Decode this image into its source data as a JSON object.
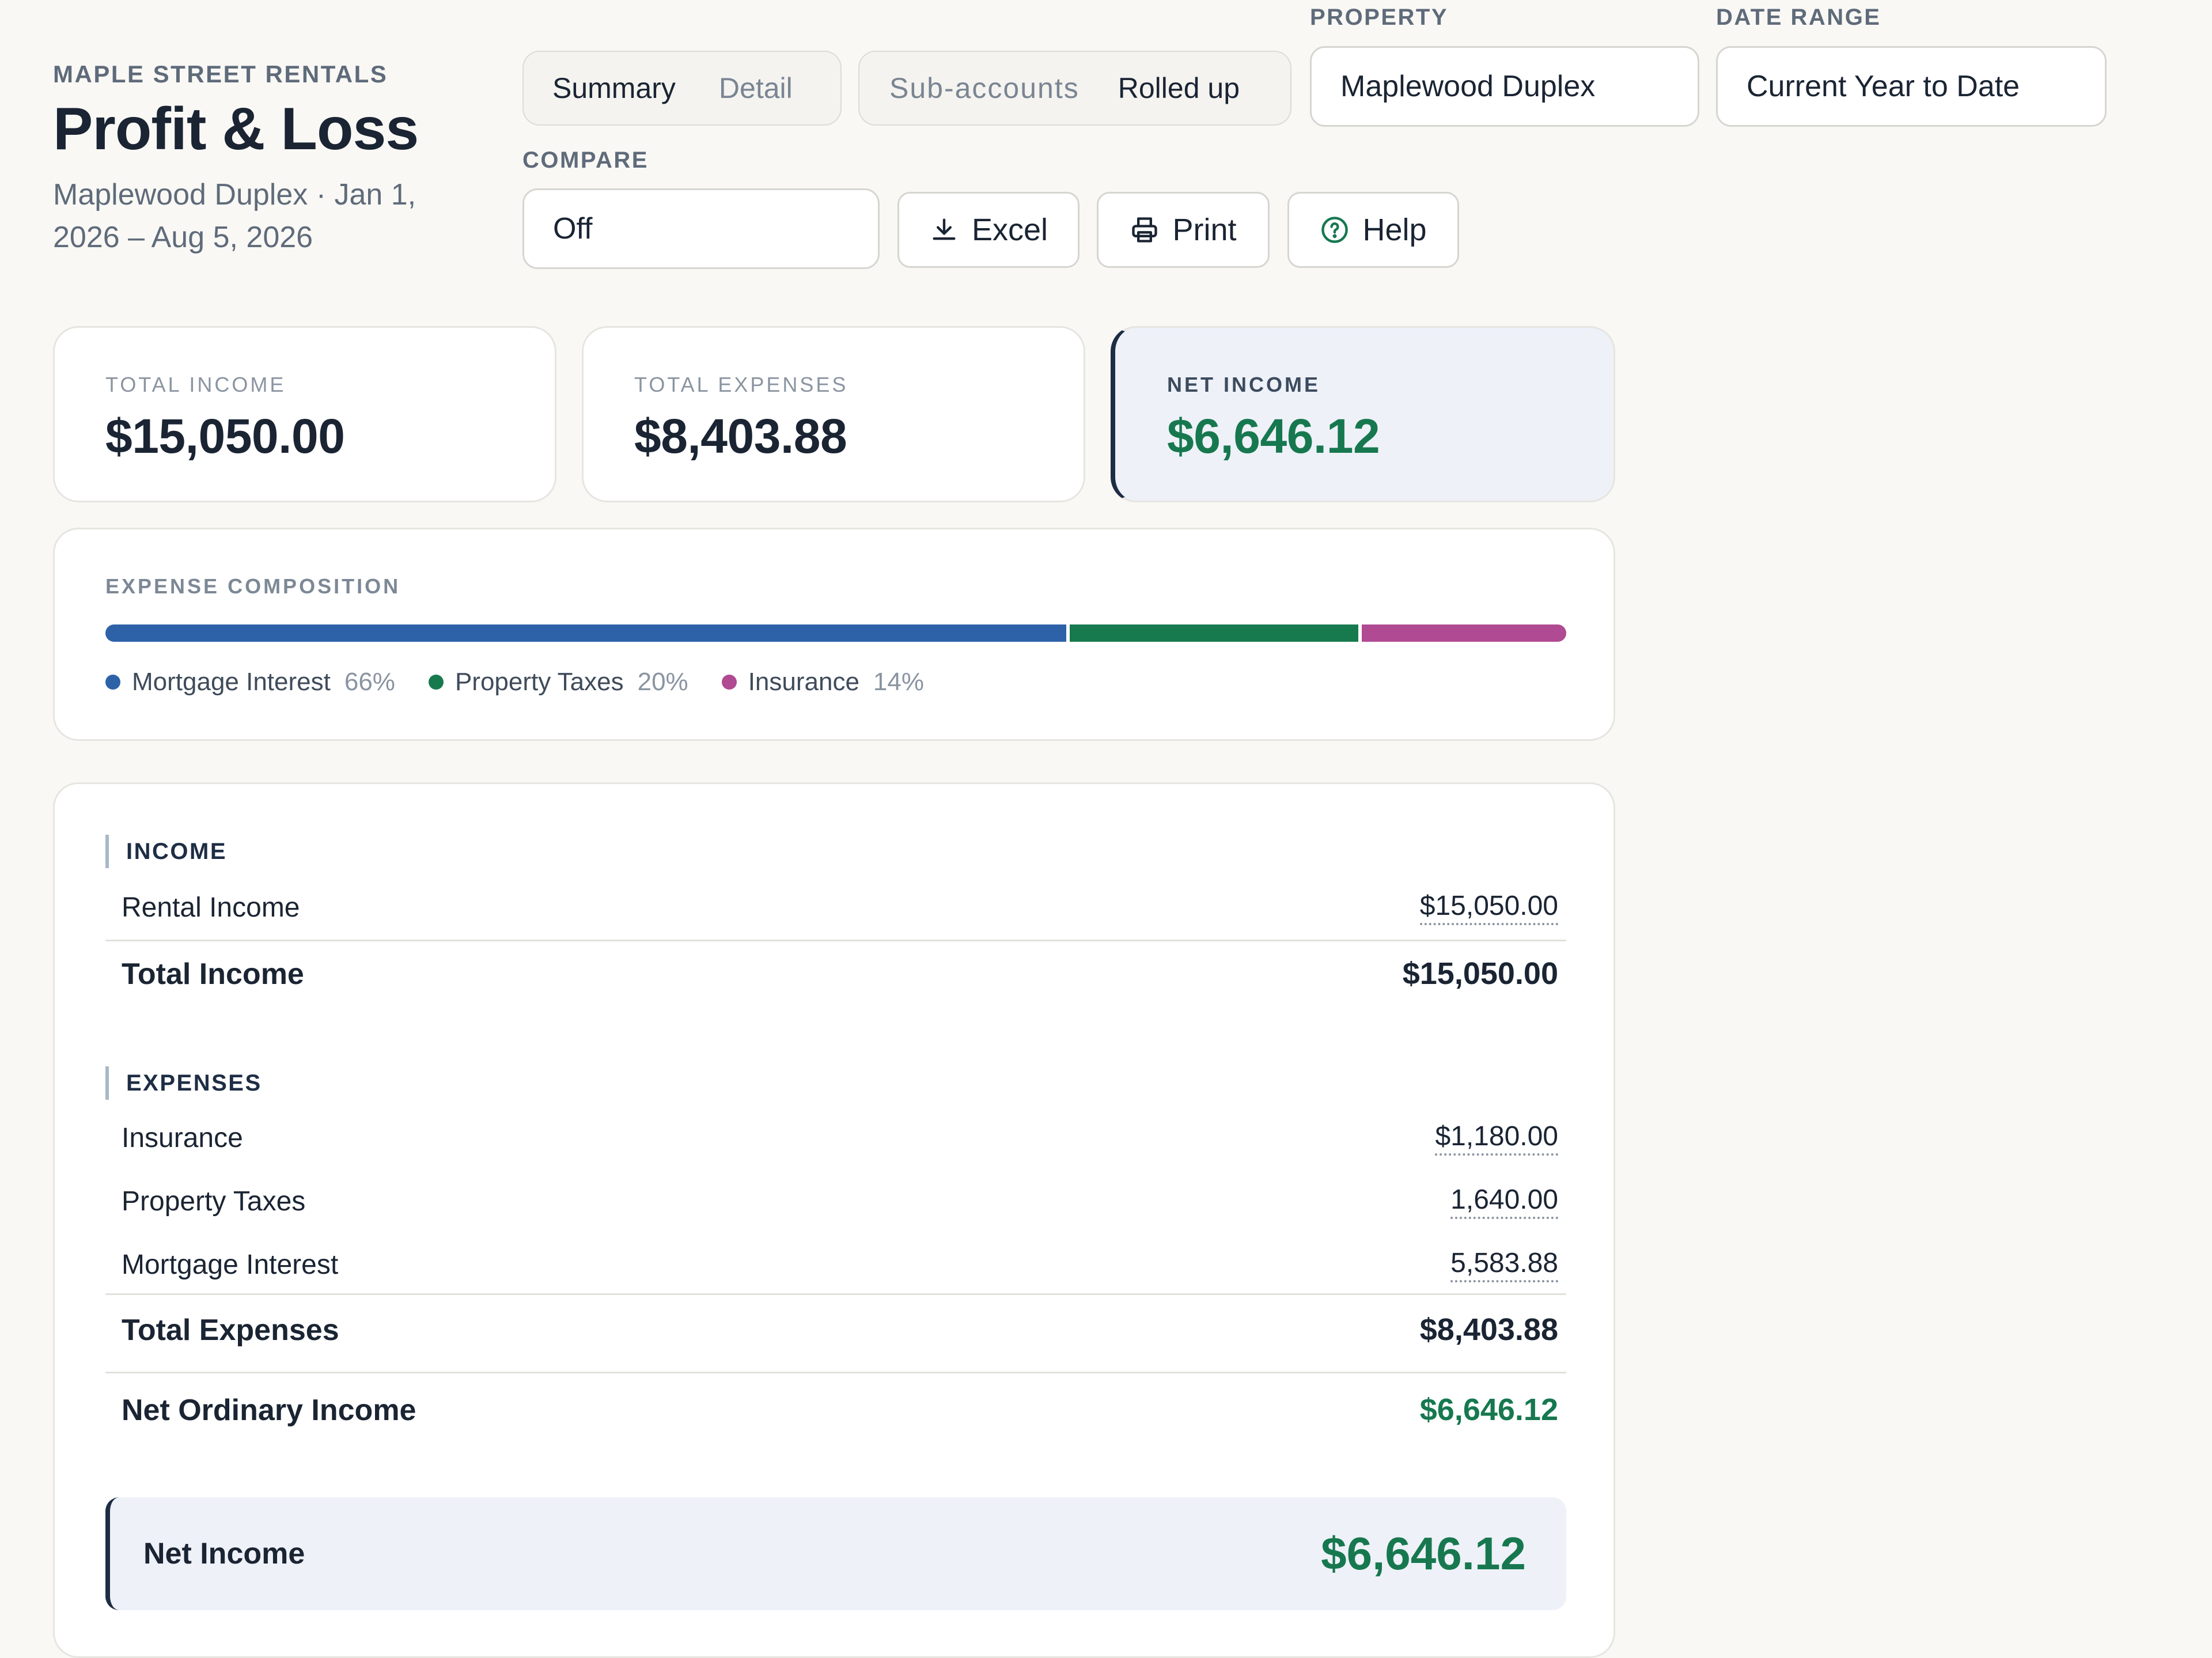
{
  "header": {
    "org": "MAPLE STREET RENTALS",
    "title": "Profit & Loss",
    "subtitle_line1": "Maplewood Duplex · Jan 1,",
    "subtitle_line2": "2026 – Aug 5, 2026"
  },
  "controls": {
    "view_toggle": {
      "summary": "Summary",
      "detail": "Detail",
      "selected": "Summary"
    },
    "account_toggle": {
      "sub_accounts": "Sub-accounts",
      "rolled_up": "Rolled up",
      "selected": "Rolled up"
    },
    "property": {
      "label": "PROPERTY",
      "value": "Maplewood Duplex"
    },
    "date_range": {
      "label": "DATE RANGE",
      "value": "Current Year to Date"
    },
    "compare": {
      "label": "COMPARE",
      "value": "Off"
    },
    "buttons": {
      "excel": "Excel",
      "print": "Print",
      "help": "Help"
    }
  },
  "kpis": {
    "total_income": {
      "label": "TOTAL INCOME",
      "value": "$15,050.00"
    },
    "total_expenses": {
      "label": "TOTAL EXPENSES",
      "value": "$8,403.88"
    },
    "net_income": {
      "label": "NET INCOME",
      "value": "$6,646.12"
    }
  },
  "composition": {
    "title": "EXPENSE COMPOSITION",
    "segments": [
      {
        "name": "Mortgage Interest",
        "pct": "66%",
        "share": 0.66,
        "color": "#2e62a8"
      },
      {
        "name": "Property Taxes",
        "pct": "20%",
        "share": 0.2,
        "color": "#177a4e"
      },
      {
        "name": "Insurance",
        "pct": "14%",
        "share": 0.14,
        "color": "#b04a92"
      }
    ]
  },
  "report": {
    "income": {
      "heading": "INCOME",
      "rows": [
        {
          "label": "Rental Income",
          "amount": "$15,050.00"
        }
      ],
      "total_label": "Total Income",
      "total_amount": "$15,050.00"
    },
    "expenses": {
      "heading": "EXPENSES",
      "rows": [
        {
          "label": "Insurance",
          "amount": "$1,180.00"
        },
        {
          "label": "Property Taxes",
          "amount": "1,640.00"
        },
        {
          "label": "Mortgage Interest",
          "amount": "5,583.88"
        }
      ],
      "total_label": "Total Expenses",
      "total_amount": "$8,403.88"
    },
    "net_ordinary": {
      "label": "Net Ordinary Income",
      "amount": "$6,646.12"
    },
    "net_income": {
      "label": "Net Income",
      "amount": "$6,646.12"
    }
  },
  "colors": {
    "positive": "#17784f",
    "accent_border": "#1d2d44",
    "net_bg": "#eef1f8"
  }
}
